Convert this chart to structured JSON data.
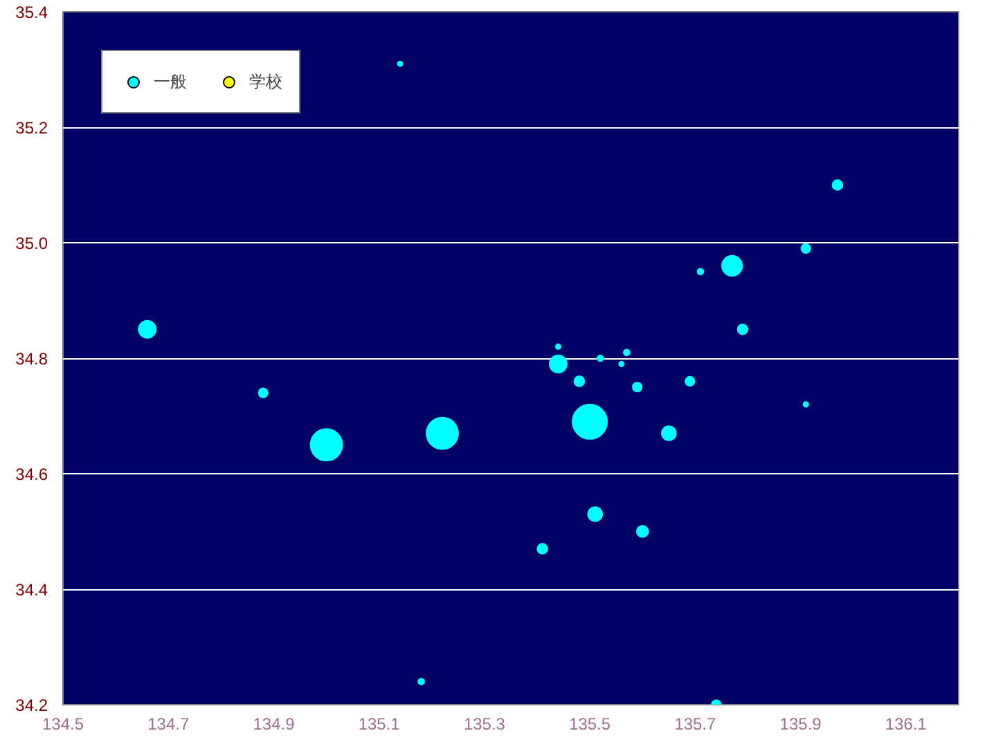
{
  "chart_data": {
    "type": "bubble",
    "xlim": [
      134.5,
      136.2
    ],
    "ylim": [
      34.2,
      35.4
    ],
    "xticks": [
      134.5,
      134.7,
      134.9,
      135.1,
      135.3,
      135.5,
      135.7,
      135.9,
      136.1
    ],
    "yticks": [
      {
        "value": 34.2,
        "label": "34.2"
      },
      {
        "value": 34.4,
        "label": "34.4"
      },
      {
        "value": 34.6,
        "label": "34.6"
      },
      {
        "value": 34.8,
        "label": "34.8"
      },
      {
        "value": 35.0,
        "label": "35.0"
      },
      {
        "value": 35.2,
        "label": "35.2"
      },
      {
        "value": 35.4,
        "label": "35.4"
      }
    ],
    "grid": "y",
    "legend": "top left",
    "marker": "circle",
    "series": [
      {
        "name": "一般",
        "color": "#00ffff",
        "x": [
          135.14,
          135.97,
          135.91,
          135.77,
          135.71,
          134.66,
          135.79,
          135.44,
          135.57,
          135.44,
          135.52,
          135.56,
          135.48,
          135.69,
          135.59,
          134.88,
          135.91,
          135.5,
          135.22,
          135.0,
          135.65,
          135.51,
          135.41,
          135.6,
          135.18,
          135.74
        ],
        "values": [
          35.31,
          35.1,
          34.99,
          34.96,
          34.95,
          34.85,
          34.85,
          34.82,
          34.81,
          34.79,
          34.8,
          34.79,
          34.76,
          34.76,
          34.75,
          34.74,
          34.72,
          34.69,
          34.67,
          34.65,
          34.67,
          34.53,
          34.47,
          34.5,
          34.24,
          34.2
        ],
        "sizes": [
          0.02,
          0.085,
          0.07,
          0.34,
          0.03,
          0.25,
          0.085,
          0.02,
          0.03,
          0.25,
          0.03,
          0.02,
          0.085,
          0.07,
          0.07,
          0.07,
          0.02,
          1,
          0.84,
          0.84,
          0.17,
          0.17,
          0.085,
          0.11,
          0.03,
          0.07
        ]
      },
      {
        "name": "学校",
        "color": "#ffff00"
      }
    ]
  }
}
